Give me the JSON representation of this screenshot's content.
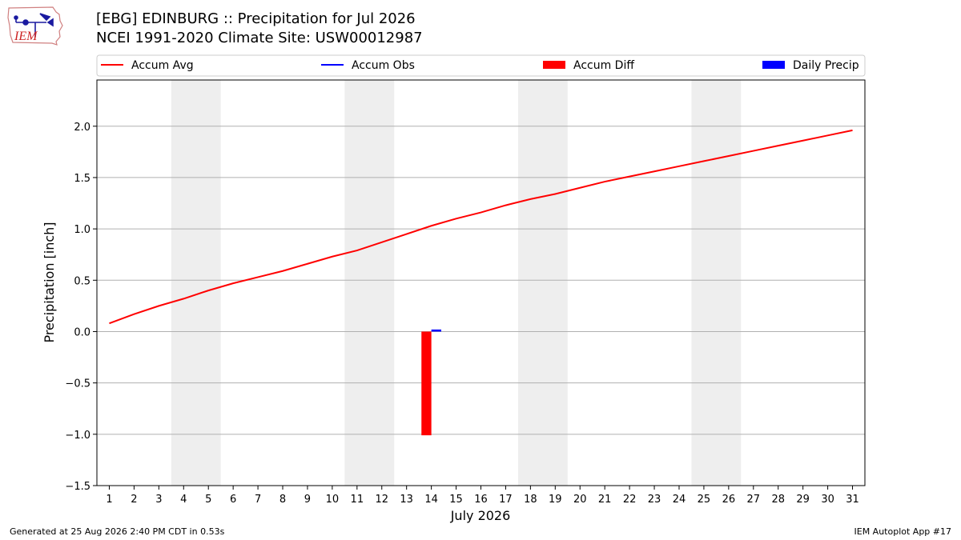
{
  "page": {
    "title_line1": "[EBG] EDINBURG :: Precipitation for Jul 2026",
    "title_line2": "NCEI 1991-2020 Climate Site: USW00012987",
    "footer_left": "Generated at 25 Aug 2026 2:40 PM CDT in 0.53s",
    "footer_right": "IEM Autoplot App #17",
    "logo_text": "IEM"
  },
  "colors": {
    "accum_avg": "#ff0000",
    "accum_obs": "#0000ff",
    "accum_diff": "#ff0000",
    "daily_precip": "#0000ff",
    "weekend_shade": "#eeeeee",
    "grid": "#b0b0b0"
  },
  "chart_data": {
    "type": "line",
    "title": "[EBG] EDINBURG :: Precipitation for Jul 2026",
    "subtitle": "NCEI 1991-2020 Climate Site: USW00012987",
    "xlabel": "July 2026",
    "ylabel": "Precipitation [inch]",
    "xlim": [
      0.5,
      31.5
    ],
    "ylim": [
      -1.5,
      2.45
    ],
    "x_ticks": [
      1,
      2,
      3,
      4,
      5,
      6,
      7,
      8,
      9,
      10,
      11,
      12,
      13,
      14,
      15,
      16,
      17,
      18,
      19,
      20,
      21,
      22,
      23,
      24,
      25,
      26,
      27,
      28,
      29,
      30,
      31
    ],
    "y_ticks": [
      -1.5,
      -1.0,
      -0.5,
      0.0,
      0.5,
      1.0,
      1.5,
      2.0
    ],
    "y_tick_labels": [
      "−1.5",
      "−1.0",
      "−0.5",
      "0.0",
      "0.5",
      "1.0",
      "1.5",
      "2.0"
    ],
    "grid": "horizontal",
    "legend": {
      "placement": "top",
      "entries": [
        {
          "label": "Accum Avg",
          "kind": "line",
          "color": "#ff0000"
        },
        {
          "label": "Accum Obs",
          "kind": "line",
          "color": "#0000ff"
        },
        {
          "label": "Accum Diff",
          "kind": "patch",
          "color": "#ff0000"
        },
        {
          "label": "Daily Precip",
          "kind": "patch",
          "color": "#0000ff"
        }
      ]
    },
    "weekend_shading": [
      [
        3.5,
        5.5
      ],
      [
        10.5,
        12.5
      ],
      [
        17.5,
        19.5
      ],
      [
        24.5,
        26.5
      ]
    ],
    "series": [
      {
        "name": "Accum Avg",
        "type": "line",
        "color": "#ff0000",
        "x": [
          1,
          2,
          3,
          4,
          5,
          6,
          7,
          8,
          9,
          10,
          11,
          12,
          13,
          14,
          15,
          16,
          17,
          18,
          19,
          20,
          21,
          22,
          23,
          24,
          25,
          26,
          27,
          28,
          29,
          30,
          31
        ],
        "values": [
          0.08,
          0.17,
          0.25,
          0.32,
          0.4,
          0.47,
          0.53,
          0.59,
          0.66,
          0.73,
          0.79,
          0.87,
          0.95,
          1.03,
          1.1,
          1.16,
          1.23,
          1.29,
          1.34,
          1.4,
          1.46,
          1.51,
          1.56,
          1.61,
          1.66,
          1.71,
          1.76,
          1.81,
          1.86,
          1.91,
          1.96
        ]
      },
      {
        "name": "Accum Diff",
        "type": "bar",
        "color": "#ff0000",
        "x": [
          14
        ],
        "values": [
          -1.01
        ]
      },
      {
        "name": "Daily Precip",
        "type": "bar",
        "color": "#0000ff",
        "x": [
          14
        ],
        "values": [
          0.02
        ]
      }
    ]
  }
}
